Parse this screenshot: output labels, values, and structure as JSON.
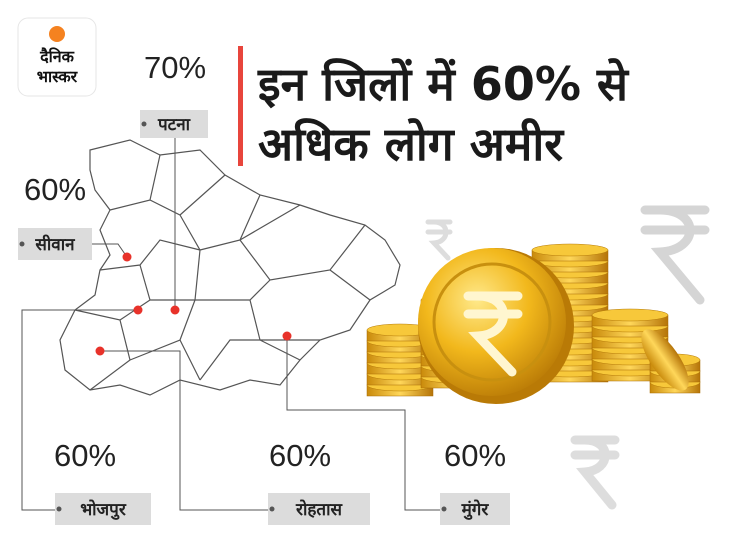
{
  "logo": {
    "line1": "दैनिक",
    "line2": "भास्कर"
  },
  "title": {
    "line1": "इन जिलों में 60% से",
    "line2": "अधिक लोग अमीर"
  },
  "districts": [
    {
      "name": "पटना",
      "value": "70%"
    },
    {
      "name": "सीवान",
      "value": "60%"
    },
    {
      "name": "भोजपुर",
      "value": "60%"
    },
    {
      "name": "रोहतास",
      "value": "60%"
    },
    {
      "name": "मुंगेर",
      "value": "60%"
    }
  ]
}
